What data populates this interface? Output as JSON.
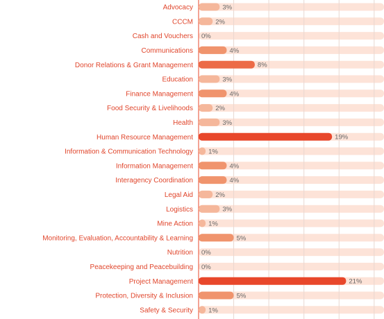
{
  "chart_data": {
    "type": "bar",
    "orientation": "horizontal",
    "categories": [
      "Advocacy",
      "CCCM",
      "Cash and Vouchers",
      "Communications",
      "Donor Relations & Grant Management",
      "Education",
      "Finance Management",
      "Food Security & Livelihoods",
      "Health",
      "Human Resource Management",
      "Information & Communication Technology",
      "Information Management",
      "Interagency Coordination",
      "Legal Aid",
      "Logistics",
      "Mine Action",
      "Monitoring, Evaluation, Accountability & Learning",
      "Nutrition",
      "Peacekeeping and Peacebuilding",
      "Project Management",
      "Protection, Diversity & Inclusion",
      "Safety & Security"
    ],
    "values": [
      3,
      2,
      0,
      4,
      8,
      3,
      4,
      2,
      3,
      19,
      1,
      4,
      4,
      2,
      3,
      1,
      5,
      0,
      0,
      21,
      5,
      1
    ],
    "value_labels": [
      "3%",
      "2%",
      "0%",
      "4%",
      "8%",
      "3%",
      "4%",
      "2%",
      "3%",
      "19%",
      "1%",
      "4%",
      "4%",
      "2%",
      "3%",
      "1%",
      "5%",
      "0%",
      "0%",
      "21%",
      "5%",
      "1%"
    ],
    "colors": [
      "#f5b79b",
      "#f5b79b",
      "#f5b79b",
      "#f0946d",
      "#ec6b47",
      "#f5b79b",
      "#f0946d",
      "#f5b79b",
      "#f5b79b",
      "#e8472b",
      "#f5b79b",
      "#f0946d",
      "#f0946d",
      "#f5b79b",
      "#f5b79b",
      "#f5b79b",
      "#f0946d",
      "#f5b79b",
      "#f5b79b",
      "#e8472b",
      "#f0946d",
      "#f5b79b"
    ],
    "track_color": "#fde3d8",
    "xlim": [
      0,
      26.4
    ],
    "xticks": [
      0,
      5,
      10,
      15,
      20,
      25
    ],
    "grid": true
  }
}
